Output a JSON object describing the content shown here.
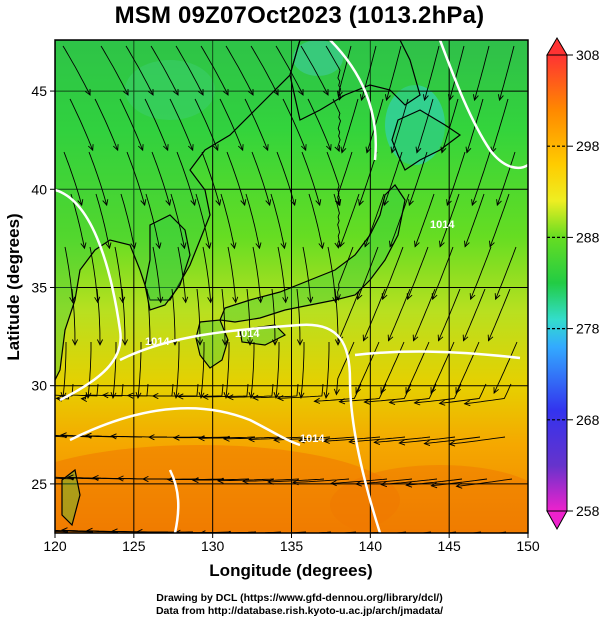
{
  "title": "MSM 09Z07Oct2023 (1013.2hPa)",
  "map": {
    "lon_range": [
      120,
      150
    ],
    "lat_range": [
      22.5,
      47.6
    ],
    "x_ticks": [
      "120",
      "125",
      "130",
      "135",
      "140",
      "145",
      "150"
    ],
    "y_ticks": [
      "25",
      "30",
      "35",
      "40",
      "45"
    ],
    "xlabel": "Longitude (degrees)",
    "ylabel": "Latitude (degrees)",
    "field": "temperature (K) with wind streamlines",
    "isobar_labels": [
      "1014",
      "1014",
      "1014",
      "1014"
    ]
  },
  "colorbar": {
    "range": [
      258,
      308
    ],
    "ticks": [
      "308",
      "298",
      "288",
      "278",
      "268",
      "258"
    ],
    "colors": [
      "#cc00cc",
      "#3333ff",
      "#33ccff",
      "#33cc66",
      "#33dd33",
      "#ccee33",
      "#ffcc00",
      "#ff8800",
      "#ff3333"
    ]
  },
  "credit": {
    "line1": "Drawing by DCL (https://www.gfd-dennou.org/library/dcl/)",
    "line2": "Data from http://database.rish.kyoto-u.ac.jp/arch/jmadata/"
  }
}
